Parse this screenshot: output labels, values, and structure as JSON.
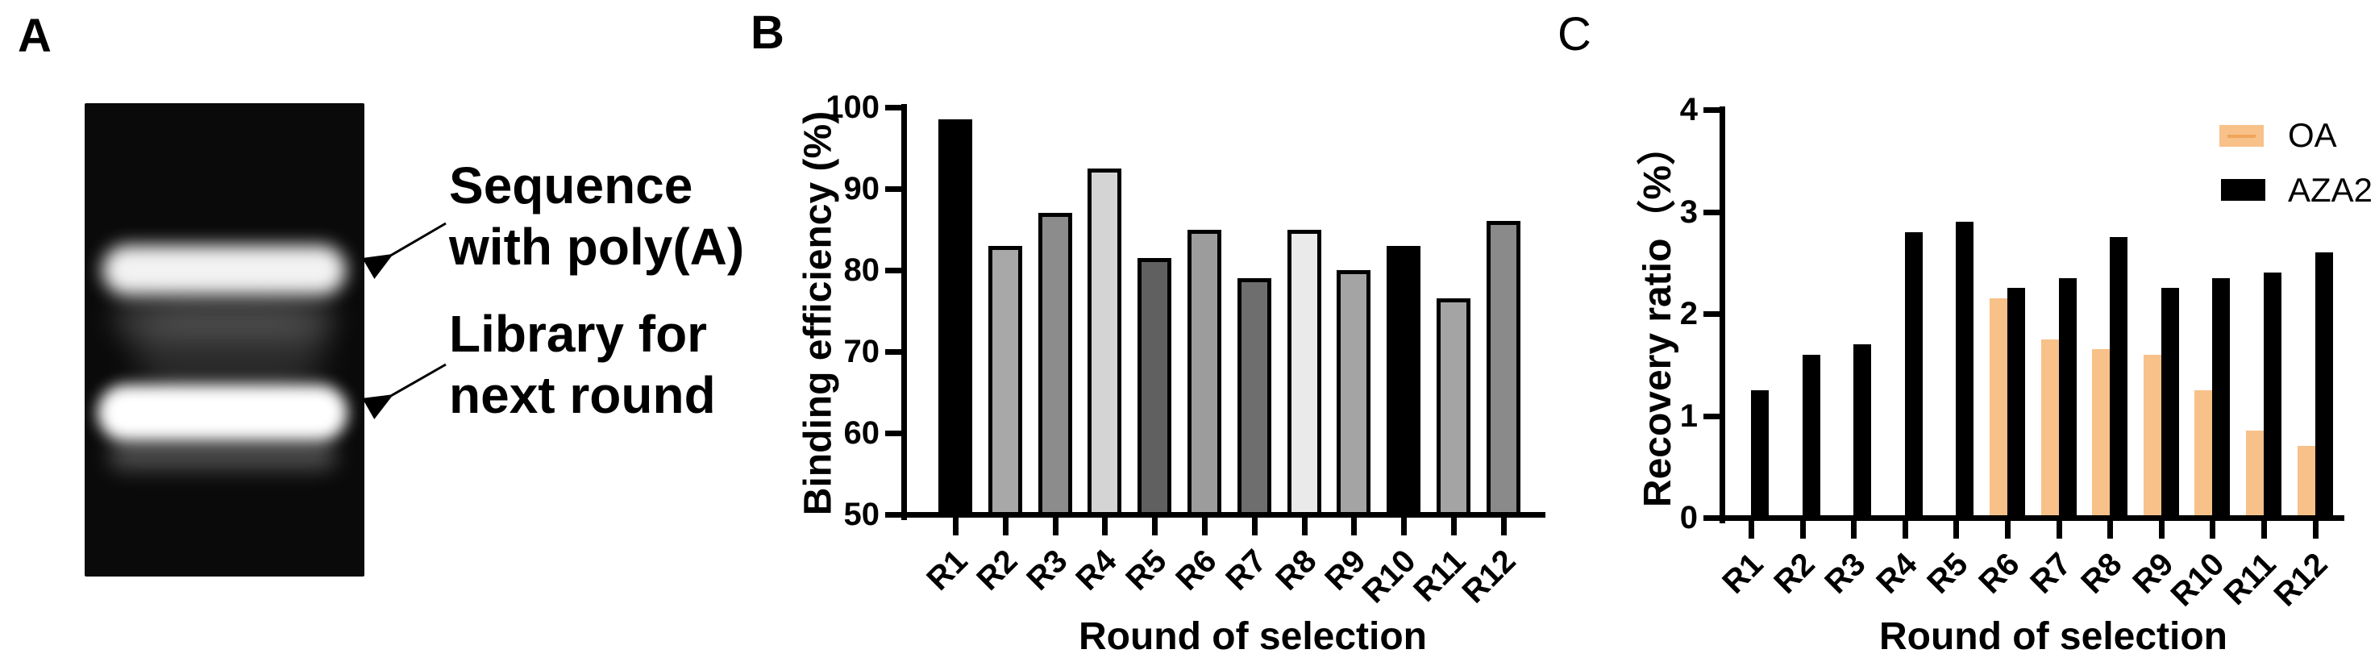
{
  "panels": {
    "a": {
      "label": "A",
      "annotations": [
        {
          "lines": [
            "Sequence",
            "with poly(A)"
          ]
        },
        {
          "lines": [
            "Library for",
            "next round"
          ]
        }
      ]
    },
    "b": {
      "label": "B"
    },
    "c": {
      "label": "C"
    }
  },
  "chart_data": [
    {
      "id": "b",
      "type": "bar",
      "title": "",
      "xlabel": "Round of selection",
      "ylabel": "Binding efficiency (%)",
      "categories": [
        "R1",
        "R2",
        "R3",
        "R4",
        "R5",
        "R6",
        "R7",
        "R8",
        "R9",
        "R10",
        "R11",
        "R12"
      ],
      "values": [
        98.5,
        83,
        87,
        92.5,
        81.5,
        85,
        79,
        85,
        80,
        83,
        76.5,
        86
      ],
      "bar_colors": [
        "#000000",
        "#a8a8a8",
        "#8c8c8c",
        "#d4d4d4",
        "#606060",
        "#9c9c9c",
        "#6e6e6e",
        "#eaeaea",
        "#a4a4a4",
        "#000000",
        "#a4a4a4",
        "#8a8a8a"
      ],
      "ylim": [
        50,
        100
      ],
      "yticks": [
        50,
        60,
        70,
        80,
        90,
        100
      ],
      "grid": false,
      "legend_position": "none"
    },
    {
      "id": "c",
      "type": "bar",
      "title": "",
      "xlabel": "Round of selection",
      "ylabel": "Recovery ratio（%）",
      "categories": [
        "R1",
        "R2",
        "R3",
        "R4",
        "R5",
        "R6",
        "R7",
        "R8",
        "R9",
        "R10",
        "R11",
        "R12"
      ],
      "series": [
        {
          "name": "OA",
          "color": "#F7C189",
          "accent_line": "#eda055",
          "values": [
            null,
            null,
            null,
            null,
            null,
            2.15,
            1.75,
            1.65,
            1.6,
            1.25,
            0.85,
            0.7
          ]
        },
        {
          "name": "AZA2",
          "color": "#000000",
          "accent_line": "",
          "values": [
            1.25,
            1.6,
            1.7,
            2.8,
            2.9,
            2.25,
            2.35,
            2.75,
            2.25,
            2.35,
            2.4,
            2.6
          ]
        }
      ],
      "ylim": [
        0,
        4
      ],
      "yticks": [
        0,
        1,
        2,
        3,
        4
      ],
      "grid": false,
      "legend_position": "top-right"
    }
  ]
}
